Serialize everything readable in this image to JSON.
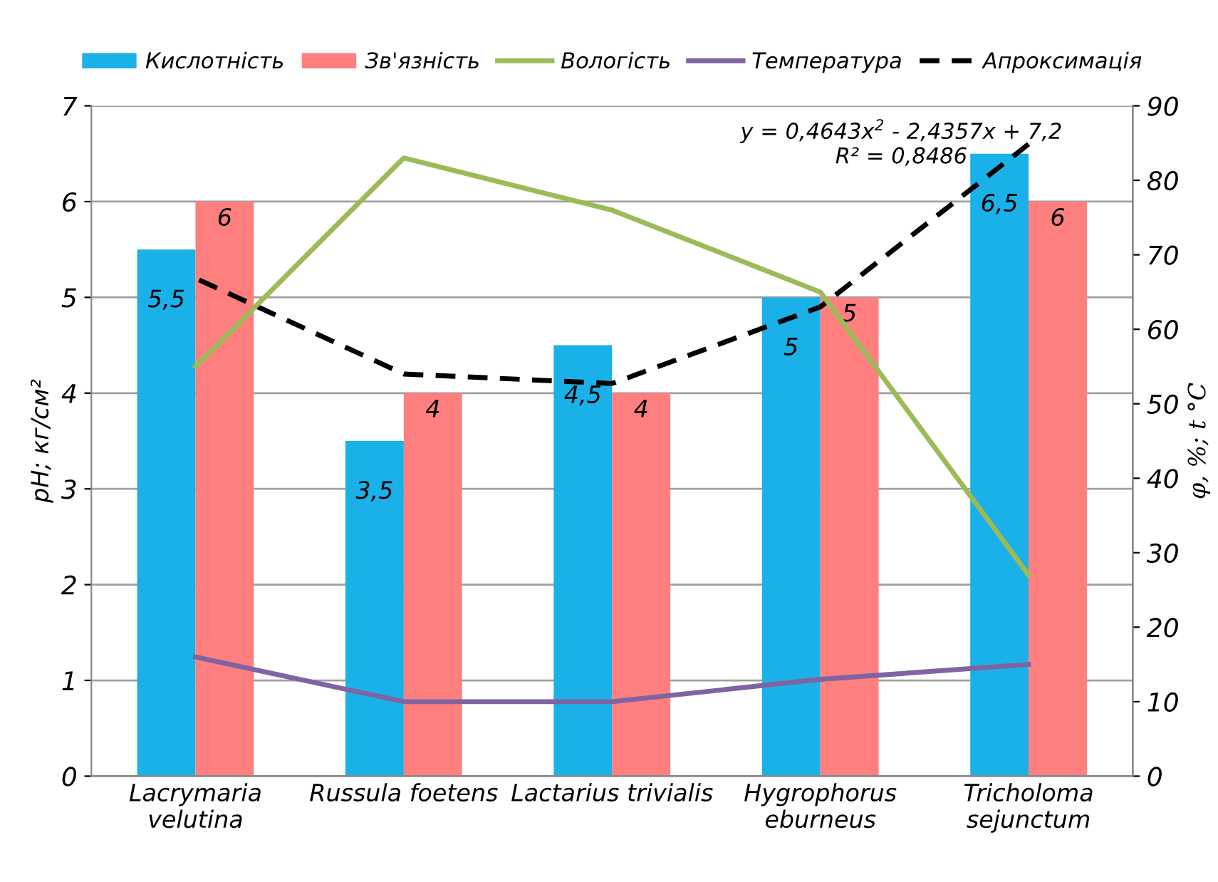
{
  "chart_data": {
    "type": "bar",
    "categories": [
      "Lacrymaria\nvelutina",
      "Russula foetens",
      "Lactarius trivialis",
      "Hygrophorus\neburneus",
      "Tricholoma\nsejunctum"
    ],
    "ylabel": "pH; кг/см²",
    "y2label": "φ, %; t °C",
    "ylim": [
      0,
      7
    ],
    "yticks": [
      0,
      1,
      2,
      3,
      4,
      5,
      6,
      7
    ],
    "y2lim": [
      0,
      90
    ],
    "y2ticks": [
      0,
      10,
      20,
      30,
      40,
      50,
      60,
      70,
      80,
      90
    ],
    "grid": "y",
    "legend": "top",
    "series": [
      {
        "name": "Кислотність",
        "color": "#1ab0e8",
        "values": [
          5.5,
          3.5,
          4.5,
          5,
          6.5
        ],
        "value_labels": [
          "5,5",
          "3,5",
          "4,5",
          "5",
          "6,5"
        ]
      },
      {
        "name": "Зв'язність",
        "color": "#ff7f7f",
        "values": [
          6,
          4,
          4,
          5,
          6
        ],
        "value_labels": [
          "6",
          "4",
          "4",
          "5",
          "6"
        ]
      },
      {
        "name": "Вологість",
        "type": "line",
        "axis": "y2",
        "color": "#9bbb59",
        "values": [
          55,
          83,
          76,
          65,
          27
        ]
      },
      {
        "name": "Температура",
        "type": "line",
        "axis": "y2",
        "color": "#8064a2",
        "values": [
          16,
          10,
          10,
          13,
          15
        ]
      },
      {
        "name": "Апроксимація",
        "type": "line",
        "line_style": "dashed",
        "color": "#000000",
        "values": [
          5.2,
          4.2,
          4.1,
          4.9,
          6.6
        ]
      }
    ],
    "annotations": [
      "y = 0,4643x$^{2}$ - 2,4357x + 7,2\nR² = 0,8486"
    ]
  }
}
